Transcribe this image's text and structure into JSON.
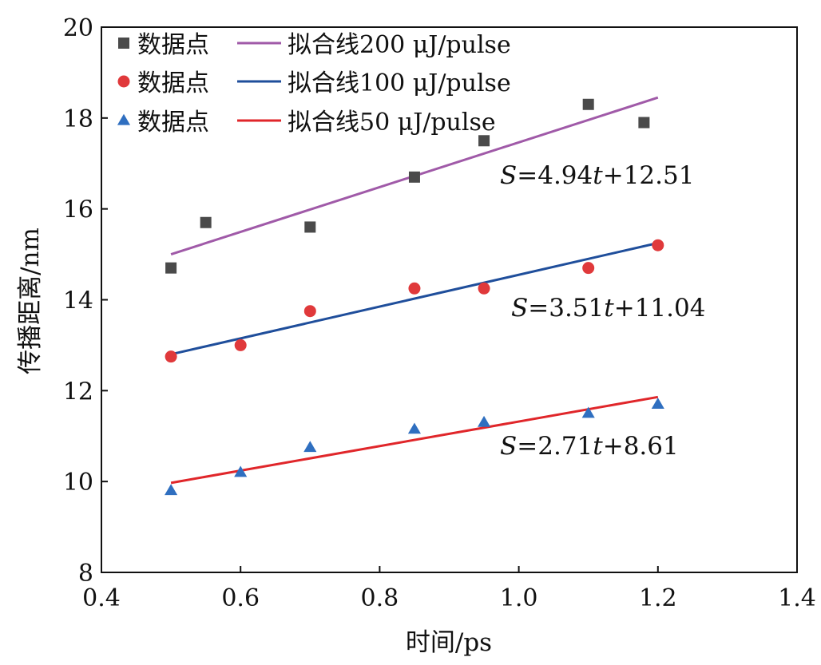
{
  "chart_data": {
    "type": "scatter",
    "xlabel": "时间/ps",
    "ylabel": "传播距离/nm",
    "xlim": [
      0.4,
      1.4
    ],
    "ylim": [
      8,
      20
    ],
    "x_ticks": [
      "0.4",
      "0.6",
      "0.8",
      "1.0",
      "1.2",
      "1.4"
    ],
    "y_ticks": [
      "8",
      "10",
      "12",
      "14",
      "16",
      "18",
      "20"
    ],
    "grid": false,
    "legend_position": "top-left",
    "series": [
      {
        "name": "数据点",
        "marker": "square",
        "color": "#4a4a4a",
        "x": [
          0.5,
          0.55,
          0.7,
          0.85,
          0.95,
          1.1,
          1.18
        ],
        "y": [
          14.7,
          15.7,
          15.6,
          16.7,
          17.5,
          18.3,
          17.9
        ]
      },
      {
        "name": "数据点",
        "marker": "circle",
        "color": "#e0393b",
        "x": [
          0.5,
          0.6,
          0.7,
          0.85,
          0.95,
          1.1,
          1.2
        ],
        "y": [
          12.75,
          13.0,
          13.75,
          14.25,
          14.25,
          14.7,
          15.2
        ]
      },
      {
        "name": "数据点",
        "marker": "triangle",
        "color": "#2f6fc0",
        "x": [
          0.5,
          0.6,
          0.7,
          0.85,
          0.95,
          1.1,
          1.2
        ],
        "y": [
          9.8,
          10.2,
          10.75,
          11.15,
          11.3,
          11.5,
          11.7
        ]
      }
    ],
    "fit_lines": [
      {
        "name": "拟合线200 μJ/pulse",
        "color": "#a05aa8",
        "x": [
          0.5,
          1.2
        ],
        "y": [
          15.0,
          18.45
        ],
        "equation": "S=4.94t+12.51"
      },
      {
        "name": "拟合线100 μJ/pulse",
        "color": "#1f4e9b",
        "x": [
          0.5,
          1.2
        ],
        "y": [
          12.8,
          15.25
        ],
        "equation": "S=3.51t+11.04"
      },
      {
        "name": "拟合线50 μJ/pulse",
        "color": "#e0262a",
        "x": [
          0.5,
          1.2
        ],
        "y": [
          9.97,
          11.86
        ],
        "equation": "S=2.71t+8.61"
      }
    ]
  }
}
